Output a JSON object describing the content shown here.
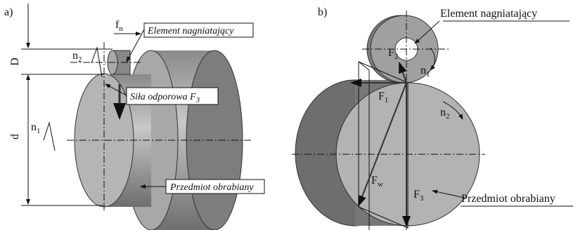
{
  "panel_a": {
    "label": "a)",
    "feed": {
      "main": "f",
      "sub": "n"
    },
    "tool_label": "Element nagniatający",
    "n2": {
      "main": "n",
      "sub": "2"
    },
    "D": "D",
    "force": {
      "main": "Siła odporowa F",
      "sub": "3"
    },
    "d": "d",
    "n1": {
      "main": "n",
      "sub": "1"
    },
    "workpiece_label": "Przedmiot obrabiany"
  },
  "panel_b": {
    "label": "b)",
    "tool_label": "Element nagniatający",
    "F2": {
      "main": "F",
      "sub": "2"
    },
    "n1": {
      "main": "n",
      "sub": "1"
    },
    "F1": {
      "main": "F",
      "sub": "1"
    },
    "n2": {
      "main": "n",
      "sub": "2"
    },
    "Fw": {
      "main": "F",
      "sub": "w"
    },
    "F3": {
      "main": "F",
      "sub": "3"
    },
    "workpiece_label": "Przedmiot obrabiany"
  }
}
